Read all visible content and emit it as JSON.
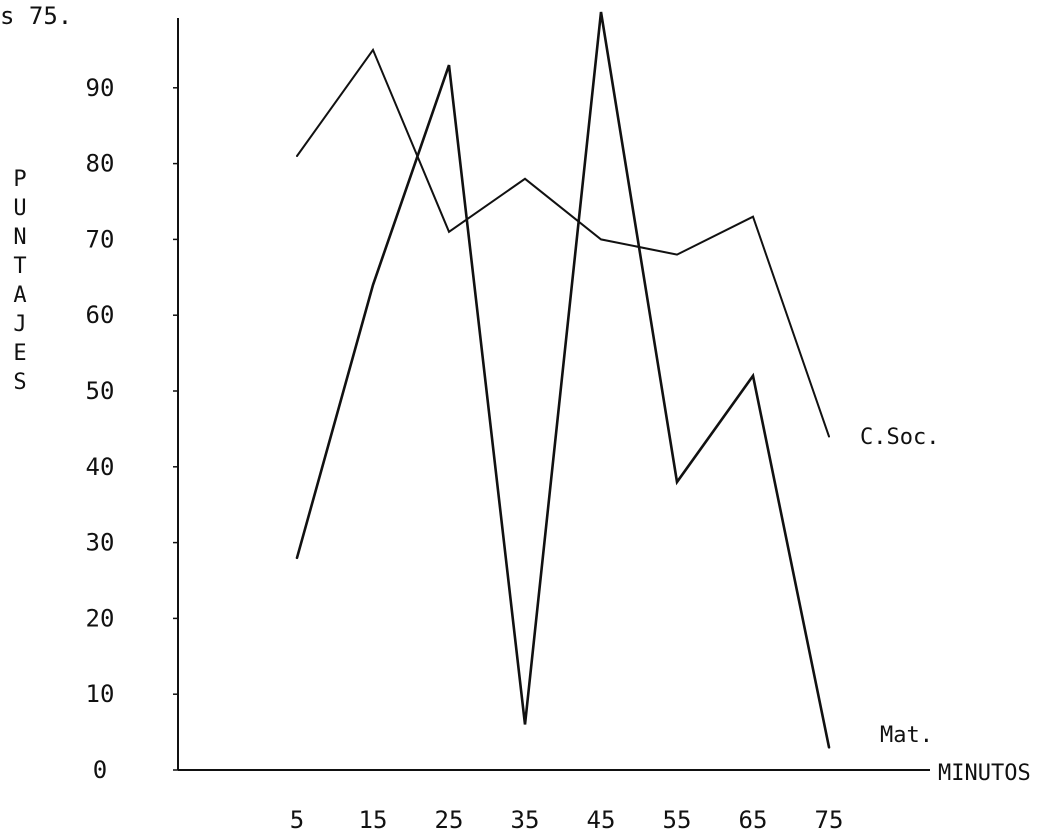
{
  "corner_text": "s 75.",
  "chart_data": {
    "type": "line",
    "xlabel": "MINUTOS",
    "ylabel": "PUNTAJES",
    "categories": [
      5,
      15,
      25,
      35,
      45,
      55,
      65,
      75
    ],
    "yticks": [
      0,
      10,
      20,
      30,
      40,
      50,
      60,
      70,
      80,
      90
    ],
    "ylim": [
      0,
      100
    ],
    "grid": false,
    "series": [
      {
        "name": "C.Soc.",
        "values": [
          81,
          95,
          71,
          78,
          70,
          68,
          73,
          44
        ]
      },
      {
        "name": "Mat.",
        "values": [
          28,
          64,
          93,
          6,
          100,
          38,
          52,
          3
        ]
      }
    ]
  }
}
